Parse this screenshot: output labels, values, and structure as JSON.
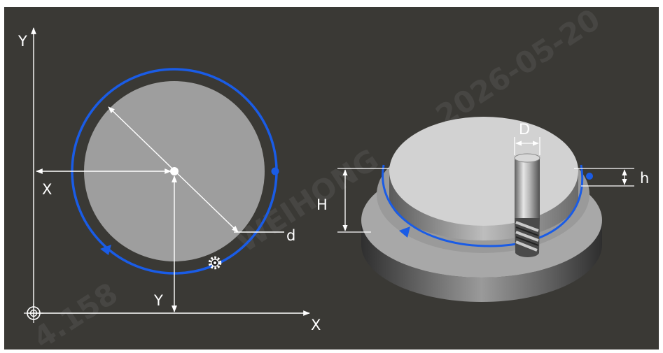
{
  "panel": {
    "background": "#3a3935",
    "accent": "#1a5ce6"
  },
  "left_diagram": {
    "axis_y_label": "Y",
    "axis_x_label": "X",
    "dim_x_label": "X",
    "dim_y_label": "Y",
    "dim_d_label": "d",
    "origin_icon": "origin-target-icon",
    "tool_icon": "gear-icon"
  },
  "right_diagram": {
    "tool_diameter_label": "D",
    "depth_label": "H",
    "step_label": "h",
    "tool_icon": "end-mill-icon"
  },
  "watermark": {
    "text1": "2026-05-20",
    "text2": "WEIHONG",
    "text3": "4.158"
  }
}
